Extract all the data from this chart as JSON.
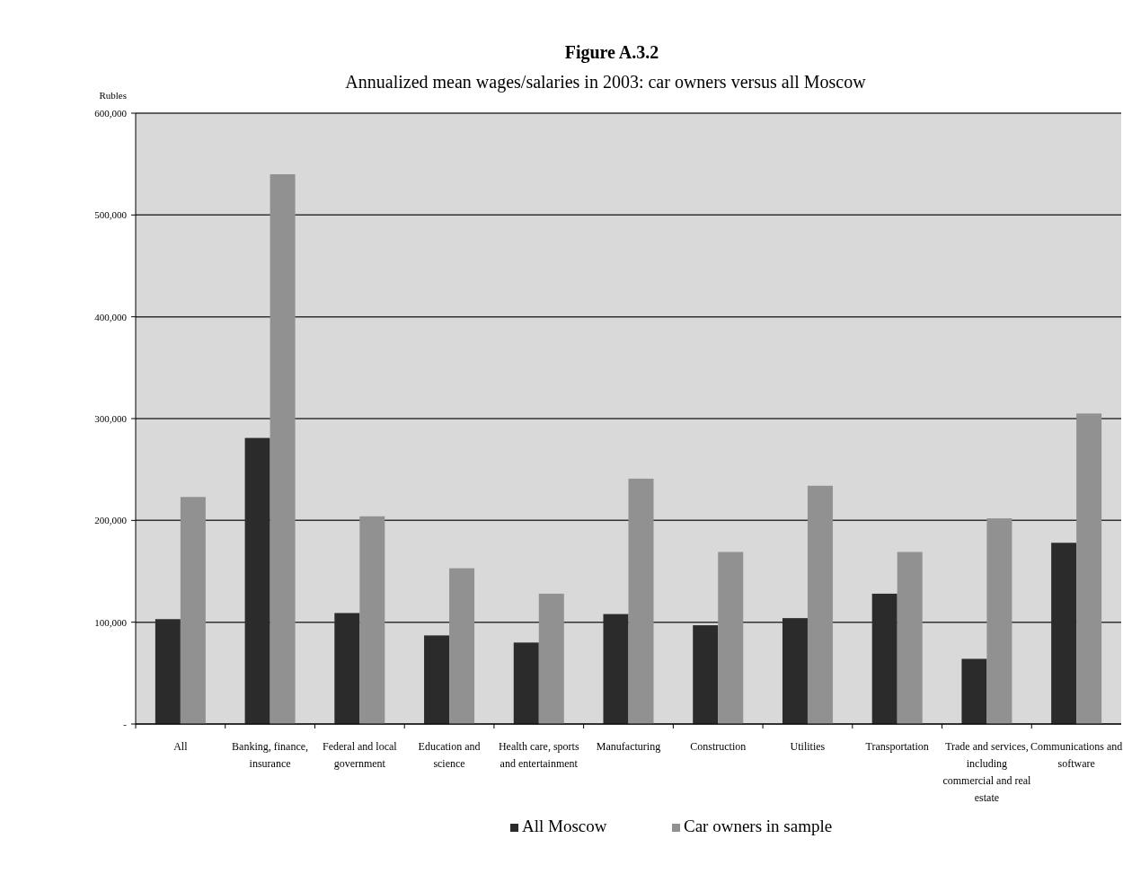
{
  "chart_data": {
    "type": "bar",
    "title": "Figure A.3.2",
    "subtitle": "Annualized mean wages/salaries in 2003: car owners versus all Moscow",
    "ylabel": "Rubles",
    "categories": [
      "All",
      "Banking, finance, insurance",
      "Federal and local government",
      "Education and science",
      "Health care, sports and entertainment",
      "Manufacturing",
      "Construction",
      "Utilities",
      "Transportation",
      "Trade and services, including commercial and real estate",
      "Communications and software"
    ],
    "series": [
      {
        "name": "All Moscow",
        "color": "#2b2b2b",
        "values": [
          103000,
          281000,
          109000,
          87000,
          80000,
          108000,
          97000,
          104000,
          128000,
          64000,
          178000
        ]
      },
      {
        "name": "Car owners in sample",
        "color": "#919191",
        "values": [
          223000,
          540000,
          204000,
          153000,
          128000,
          241000,
          169000,
          234000,
          169000,
          202000,
          305000
        ]
      }
    ],
    "ylim": [
      0,
      600000
    ],
    "yticks": [
      {
        "value": 0,
        "label": "-"
      },
      {
        "value": 100000,
        "label": "100,000"
      },
      {
        "value": 200000,
        "label": "200,000"
      },
      {
        "value": 300000,
        "label": "300,000"
      },
      {
        "value": 400000,
        "label": "400,000"
      },
      {
        "value": 500000,
        "label": "500,000"
      },
      {
        "value": 600000,
        "label": "600,000"
      }
    ],
    "grid": "y",
    "legend": "bottom"
  }
}
